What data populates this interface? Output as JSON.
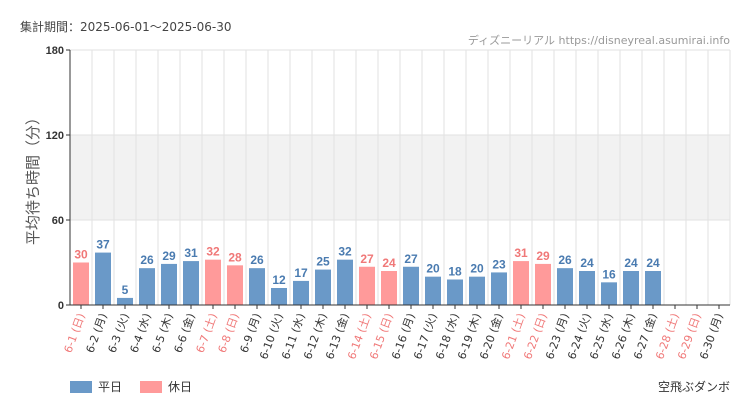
{
  "header": {
    "period": "集計期間：2025-06-01～2025-06-30",
    "site": "ディズニーリアル https://disneyreal.asumirai.info"
  },
  "footer": {
    "subject": "空飛ぶダンボ"
  },
  "colors": {
    "weekday": "#6a99c8",
    "holiday": "#ff9a9a",
    "weekday_label": "#4a7bb0",
    "holiday_label": "#f07878",
    "band": "#f2f2f2",
    "grid": "#e2e2e2"
  },
  "chart_data": {
    "type": "bar",
    "ylabel": "平均待ち時間（分）",
    "ylim": [
      0,
      180
    ],
    "yticks": [
      0,
      60,
      120,
      180
    ],
    "categories": [
      "6-1 (日)",
      "6-2 (月)",
      "6-3 (火)",
      "6-4 (水)",
      "6-5 (木)",
      "6-6 (金)",
      "6-7 (土)",
      "6-8 (日)",
      "6-9 (月)",
      "6-10 (火)",
      "6-11 (水)",
      "6-12 (木)",
      "6-13 (金)",
      "6-14 (土)",
      "6-15 (日)",
      "6-16 (月)",
      "6-17 (火)",
      "6-18 (水)",
      "6-19 (木)",
      "6-20 (金)",
      "6-21 (土)",
      "6-22 (日)",
      "6-23 (月)",
      "6-24 (火)",
      "6-25 (水)",
      "6-26 (木)",
      "6-27 (金)",
      "6-28 (土)",
      "6-29 (日)",
      "6-30 (月)"
    ],
    "values": [
      30,
      37,
      5,
      26,
      29,
      31,
      32,
      28,
      26,
      12,
      17,
      25,
      32,
      27,
      24,
      27,
      20,
      18,
      20,
      23,
      31,
      29,
      26,
      24,
      16,
      24,
      24,
      null,
      null,
      null
    ],
    "day_type": [
      "holiday",
      "weekday",
      "weekday",
      "weekday",
      "weekday",
      "weekday",
      "holiday",
      "holiday",
      "weekday",
      "weekday",
      "weekday",
      "weekday",
      "weekday",
      "holiday",
      "holiday",
      "weekday",
      "weekday",
      "weekday",
      "weekday",
      "weekday",
      "holiday",
      "holiday",
      "weekday",
      "weekday",
      "weekday",
      "weekday",
      "weekday",
      "holiday",
      "holiday",
      "weekday"
    ],
    "legend": [
      {
        "name": "平日",
        "type": "weekday"
      },
      {
        "name": "休日",
        "type": "holiday"
      }
    ],
    "legend_position": "bottom-left",
    "grid": true
  }
}
